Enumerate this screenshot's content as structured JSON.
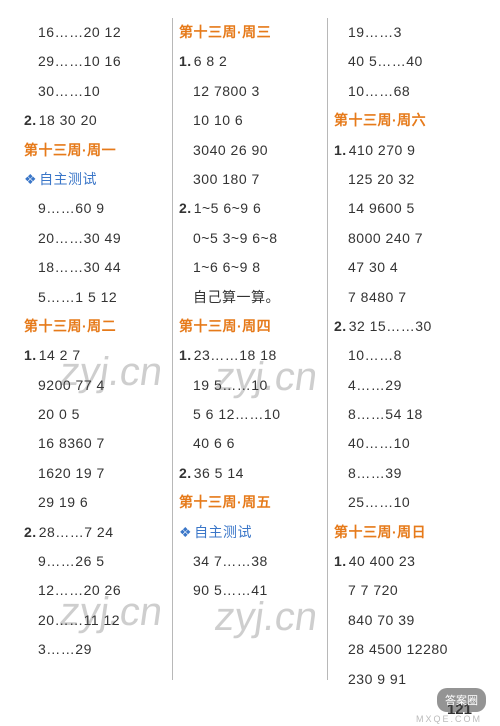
{
  "page_number": "121",
  "watermark": "zyj.cn",
  "badge": "答案圈",
  "badge_sub": "MXQE.COM",
  "columns": [
    {
      "lines": [
        {
          "t": "plain",
          "v": "16……20   12"
        },
        {
          "t": "plain",
          "v": "29……10   16"
        },
        {
          "t": "plain",
          "v": "30……10"
        },
        {
          "t": "num",
          "n": "2.",
          "v": "18   30    20"
        },
        {
          "t": "heading",
          "v": "第十三周·周一"
        },
        {
          "t": "sub",
          "v": "自主测试"
        },
        {
          "t": "plain",
          "v": "9……60    9"
        },
        {
          "t": "plain",
          "v": "20……30  49"
        },
        {
          "t": "plain",
          "v": "18……30  44"
        },
        {
          "t": "plain",
          "v": "5……1   5   12"
        },
        {
          "t": "heading",
          "v": "第十三周·周二"
        },
        {
          "t": "num",
          "n": "1.",
          "v": "14    2     7"
        },
        {
          "t": "plain",
          "v": "9200  77    4"
        },
        {
          "t": "plain",
          "v": "20    0     5"
        },
        {
          "t": "plain",
          "v": "16   8360  7"
        },
        {
          "t": "plain",
          "v": "1620  19   7"
        },
        {
          "t": "plain",
          "v": "29   19    6"
        },
        {
          "t": "num",
          "n": "2.",
          "v": "28……7    24"
        },
        {
          "t": "plain",
          "v": "9……26    5"
        },
        {
          "t": "plain",
          "v": "12……20   26"
        },
        {
          "t": "plain",
          "v": "20……11   12"
        },
        {
          "t": "plain",
          "v": "3……29"
        }
      ]
    },
    {
      "lines": [
        {
          "t": "heading",
          "v": "第十三周·周三"
        },
        {
          "t": "num",
          "n": "1.",
          "v": "6     8     2"
        },
        {
          "t": "plain",
          "v": "12   7800  3"
        },
        {
          "t": "plain",
          "v": "10   10    6"
        },
        {
          "t": "plain",
          "v": "3040  26   90"
        },
        {
          "t": "plain",
          "v": "300  180   7"
        },
        {
          "t": "num",
          "n": "2.",
          "v": "1~5  6~9  6"
        },
        {
          "t": "plain",
          "v": "0~5  3~9  6~8"
        },
        {
          "t": "plain",
          "v": "1~6  6~9  8"
        },
        {
          "t": "plain",
          "v": "自己算一算。"
        },
        {
          "t": "heading",
          "v": "第十三周·周四"
        },
        {
          "t": "num",
          "n": "1.",
          "v": "23……18   18"
        },
        {
          "t": "plain",
          "v": "19    5……10"
        },
        {
          "t": "plain",
          "v": "5     6  12……10"
        },
        {
          "t": "plain",
          "v": "40    6   6"
        },
        {
          "t": "num",
          "n": "2.",
          "v": "36    5    14"
        },
        {
          "t": "heading",
          "v": "第十三周·周五"
        },
        {
          "t": "sub",
          "v": "自主测试"
        },
        {
          "t": "plain",
          "v": "34    7……38"
        },
        {
          "t": "plain",
          "v": "90    5……41"
        }
      ]
    },
    {
      "lines": [
        {
          "t": "plain",
          "v": "19……3"
        },
        {
          "t": "plain",
          "v": "40     5……40"
        },
        {
          "t": "plain",
          "v": "10……68"
        },
        {
          "t": "heading",
          "v": "第十三周·周六"
        },
        {
          "t": "num",
          "n": "1.",
          "v": "410   270   9"
        },
        {
          "t": "plain",
          "v": "125   20   32"
        },
        {
          "t": "plain",
          "v": "14   9600   5"
        },
        {
          "t": "plain",
          "v": "8000  240   7"
        },
        {
          "t": "plain",
          "v": "47    30    4"
        },
        {
          "t": "plain",
          "v": "7    8480   7"
        },
        {
          "t": "num",
          "n": "2.",
          "v": "32    15……30"
        },
        {
          "t": "plain",
          "v": "10……8"
        },
        {
          "t": "plain",
          "v": "4……29"
        },
        {
          "t": "plain",
          "v": "8……54   18"
        },
        {
          "t": "plain",
          "v": "40……10"
        },
        {
          "t": "plain",
          "v": "8……39"
        },
        {
          "t": "plain",
          "v": "25……10"
        },
        {
          "t": "heading",
          "v": "第十三周·周日"
        },
        {
          "t": "num",
          "n": "1.",
          "v": "40   400   23"
        },
        {
          "t": "plain",
          "v": "7     7    720"
        },
        {
          "t": "plain",
          "v": "840   70   39"
        },
        {
          "t": "plain",
          "v": "28  4500 12280"
        },
        {
          "t": "plain",
          "v": "230   9    91"
        }
      ]
    }
  ]
}
